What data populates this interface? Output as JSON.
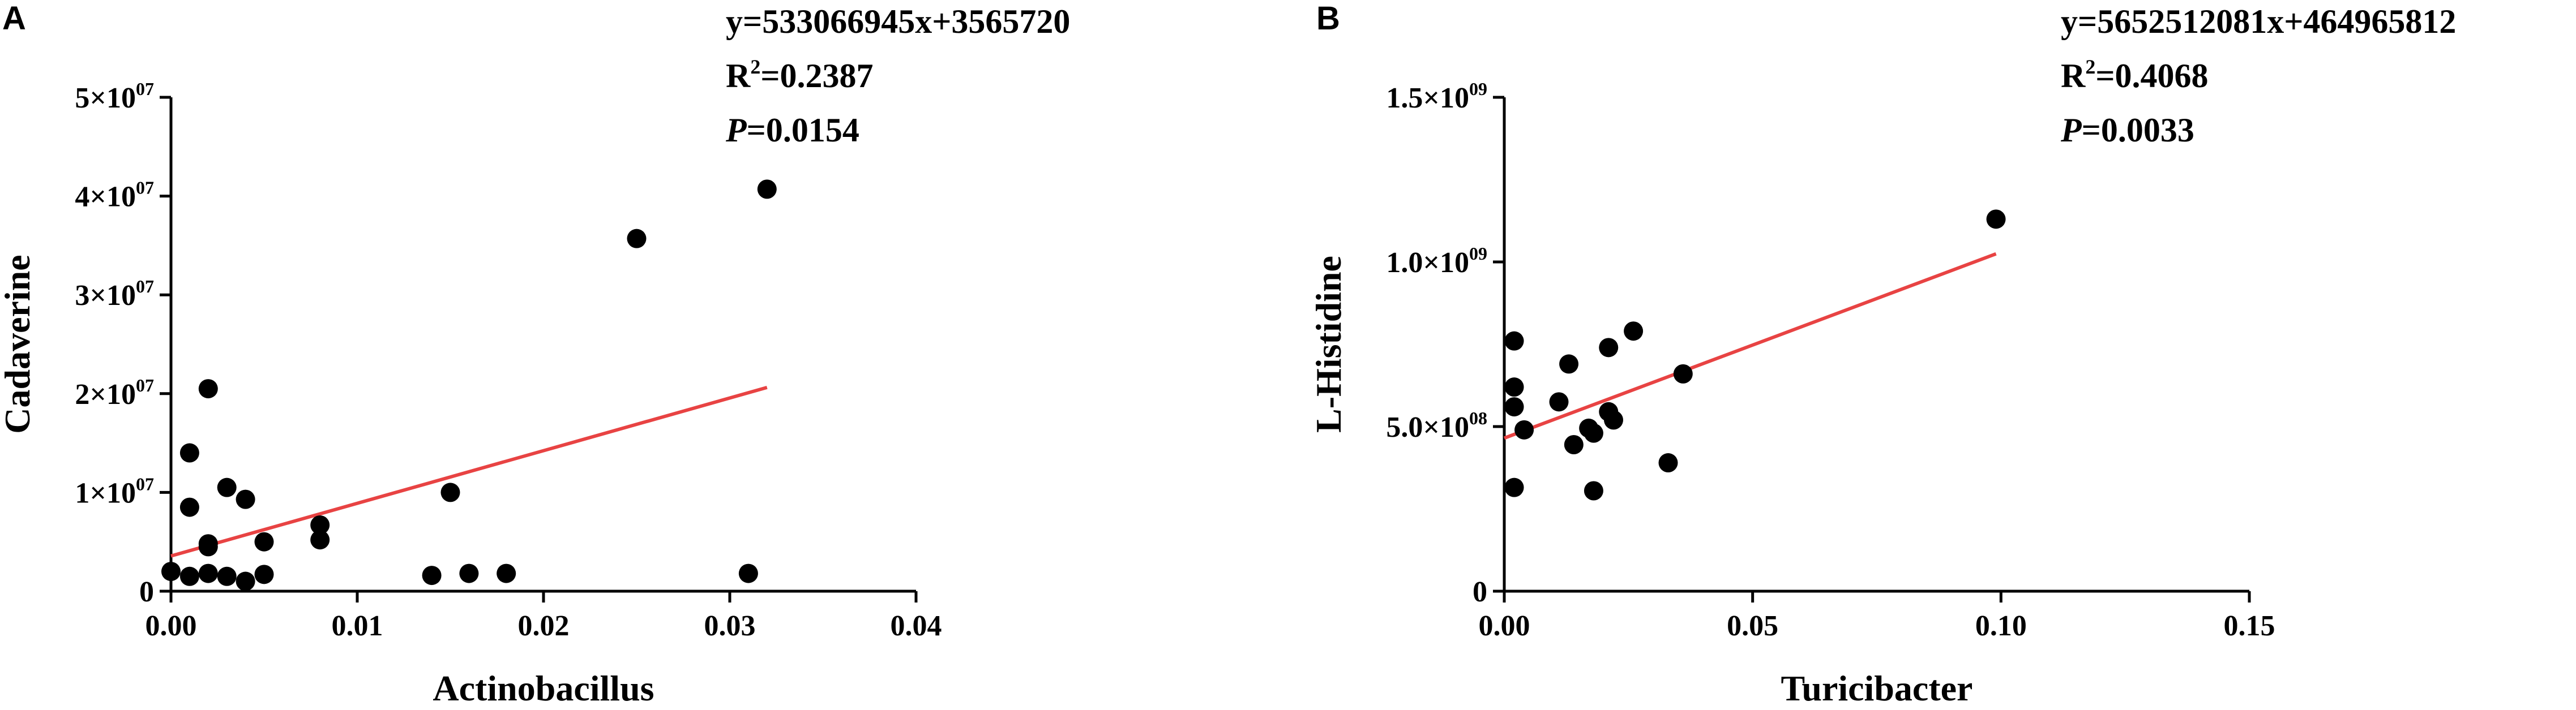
{
  "chart_data": [
    {
      "panel": "A",
      "type": "scatter",
      "xlabel": "Actinobacillus",
      "ylabel": "Cadaverine",
      "xlim": [
        0,
        0.04
      ],
      "ylim": [
        0,
        50000000
      ],
      "xticks": [
        {
          "value": 0,
          "label": "0.00"
        },
        {
          "value": 0.01,
          "label": "0.01"
        },
        {
          "value": 0.02,
          "label": "0.02"
        },
        {
          "value": 0.03,
          "label": "0.03"
        },
        {
          "value": 0.04,
          "label": "0.04"
        }
      ],
      "yticks": [
        {
          "value": 0,
          "label": "0",
          "sup": ""
        },
        {
          "value": 10000000,
          "label": "1×10",
          "sup": "07"
        },
        {
          "value": 20000000,
          "label": "2×10",
          "sup": "07"
        },
        {
          "value": 30000000,
          "label": "3×10",
          "sup": "07"
        },
        {
          "value": 40000000,
          "label": "4×10",
          "sup": "07"
        },
        {
          "value": 50000000,
          "label": "5×10",
          "sup": "07"
        }
      ],
      "points": [
        {
          "x": 0.0,
          "y": 2000000
        },
        {
          "x": 0.001,
          "y": 1500000
        },
        {
          "x": 0.001,
          "y": 14000000
        },
        {
          "x": 0.001,
          "y": 8500000
        },
        {
          "x": 0.002,
          "y": 20500000
        },
        {
          "x": 0.002,
          "y": 4800000
        },
        {
          "x": 0.002,
          "y": 4500000
        },
        {
          "x": 0.002,
          "y": 1800000
        },
        {
          "x": 0.003,
          "y": 10500000
        },
        {
          "x": 0.003,
          "y": 1500000
        },
        {
          "x": 0.004,
          "y": 9300000
        },
        {
          "x": 0.004,
          "y": 1000000
        },
        {
          "x": 0.005,
          "y": 5000000
        },
        {
          "x": 0.005,
          "y": 1700000
        },
        {
          "x": 0.008,
          "y": 6700000
        },
        {
          "x": 0.008,
          "y": 5200000
        },
        {
          "x": 0.014,
          "y": 1600000
        },
        {
          "x": 0.015,
          "y": 10000000
        },
        {
          "x": 0.016,
          "y": 1800000
        },
        {
          "x": 0.018,
          "y": 1800000
        },
        {
          "x": 0.025,
          "y": 35700000
        },
        {
          "x": 0.031,
          "y": 1800000
        },
        {
          "x": 0.032,
          "y": 40700000
        }
      ],
      "fit_line": {
        "slope": 533066945,
        "intercept": 3565720,
        "x_range": [
          0,
          0.032
        ],
        "color": "#e84343"
      },
      "annotation": {
        "equation": "y=533066945x+3565720",
        "r2_label": "R",
        "r2_sup": "2",
        "r2_value": "=0.2387",
        "p_label": "P",
        "p_value": "=0.0154"
      }
    },
    {
      "panel": "B",
      "type": "scatter",
      "xlabel": "Turicibacter",
      "ylabel": "L-Histidine",
      "xlim": [
        0,
        0.15
      ],
      "ylim": [
        0,
        1500000000
      ],
      "xticks": [
        {
          "value": 0,
          "label": "0.00"
        },
        {
          "value": 0.05,
          "label": "0.05"
        },
        {
          "value": 0.1,
          "label": "0.10"
        },
        {
          "value": 0.15,
          "label": "0.15"
        }
      ],
      "yticks": [
        {
          "value": 0,
          "label": "0",
          "sup": ""
        },
        {
          "value": 500000000,
          "label": "5.0×10",
          "sup": "08"
        },
        {
          "value": 1000000000,
          "label": "1.0×10",
          "sup": "09"
        },
        {
          "value": 1500000000,
          "label": "1.5×10",
          "sup": "09"
        }
      ],
      "points": [
        {
          "x": 0.002,
          "y": 760000000
        },
        {
          "x": 0.002,
          "y": 620000000
        },
        {
          "x": 0.002,
          "y": 560000000
        },
        {
          "x": 0.002,
          "y": 315000000
        },
        {
          "x": 0.004,
          "y": 490000000
        },
        {
          "x": 0.011,
          "y": 575000000
        },
        {
          "x": 0.013,
          "y": 690000000
        },
        {
          "x": 0.014,
          "y": 445000000
        },
        {
          "x": 0.017,
          "y": 495000000
        },
        {
          "x": 0.018,
          "y": 480000000
        },
        {
          "x": 0.018,
          "y": 305000000
        },
        {
          "x": 0.021,
          "y": 740000000
        },
        {
          "x": 0.021,
          "y": 545000000
        },
        {
          "x": 0.022,
          "y": 520000000
        },
        {
          "x": 0.026,
          "y": 790000000
        },
        {
          "x": 0.033,
          "y": 390000000
        },
        {
          "x": 0.036,
          "y": 660000000
        },
        {
          "x": 0.099,
          "y": 1130000000
        }
      ],
      "fit_line": {
        "slope": 5652512081,
        "intercept": 464965812,
        "x_range": [
          0,
          0.099
        ],
        "color": "#e84343"
      },
      "annotation": {
        "equation": "y=5652512081x+464965812",
        "r2_label": "R",
        "r2_sup": "2",
        "r2_value": "=0.4068",
        "p_label": "P",
        "p_value": "=0.0033"
      }
    }
  ]
}
